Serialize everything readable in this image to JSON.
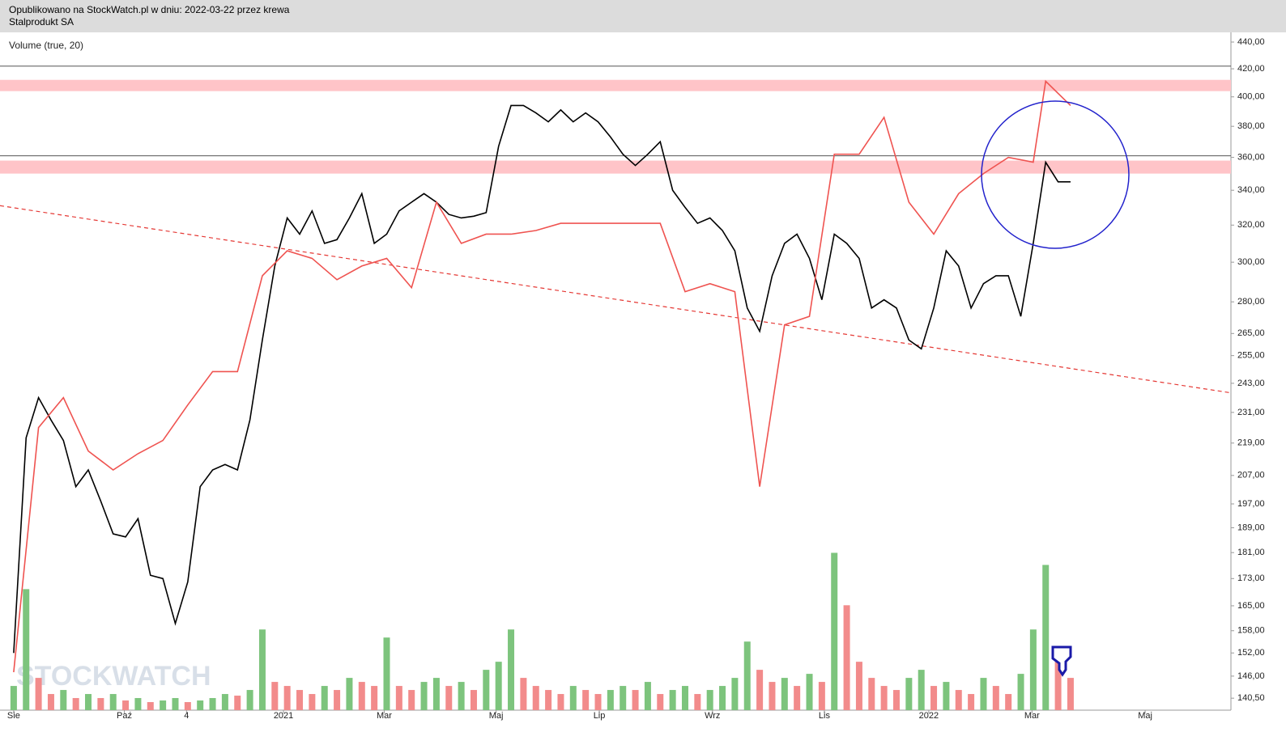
{
  "header": {
    "line1": "Opublikowano na StockWatch.pl w dniu: 2022-03-22 przez krewa",
    "line2": "Stalprodukt SA"
  },
  "chart_data": {
    "type": "line",
    "title": "Volume (true, 20)",
    "watermark": "STOCKWATCH",
    "log_scale": true,
    "xlim": [
      -1.1,
      97.9
    ],
    "xticks": [
      {
        "value": 0,
        "label": "Sie"
      },
      {
        "value": 8.9,
        "label": "Paź"
      },
      {
        "value": 13.9,
        "label": "4"
      },
      {
        "value": 21.7,
        "label": "2021"
      },
      {
        "value": 29.8,
        "label": "Mar"
      },
      {
        "value": 38.8,
        "label": "Maj"
      },
      {
        "value": 47.1,
        "label": "Lip"
      },
      {
        "value": 56.2,
        "label": "Wrz"
      },
      {
        "value": 65.2,
        "label": "Lis"
      },
      {
        "value": 73.6,
        "label": "2022"
      },
      {
        "value": 81.9,
        "label": "Mar"
      },
      {
        "value": 91.0,
        "label": "Maj"
      }
    ],
    "ylim": [
      137.6,
      447.5
    ],
    "yticks": [
      {
        "value": 440,
        "label": "440,00"
      },
      {
        "value": 420,
        "label": "420,00"
      },
      {
        "value": 400,
        "label": "400,00"
      },
      {
        "value": 380,
        "label": "380,00"
      },
      {
        "value": 360,
        "label": "360,00"
      },
      {
        "value": 340,
        "label": "340,00"
      },
      {
        "value": 320,
        "label": "320,00"
      },
      {
        "value": 300,
        "label": "300,00"
      },
      {
        "value": 280,
        "label": "280,00"
      },
      {
        "value": 265,
        "label": "265,00"
      },
      {
        "value": 255,
        "label": "255,00"
      },
      {
        "value": 243,
        "label": "243,00"
      },
      {
        "value": 231,
        "label": "231,00"
      },
      {
        "value": 219,
        "label": "219,00"
      },
      {
        "value": 207,
        "label": "207,00"
      },
      {
        "value": 197,
        "label": "197,00"
      },
      {
        "value": 189,
        "label": "189,00"
      },
      {
        "value": 181,
        "label": "181,00"
      },
      {
        "value": 173,
        "label": "173,00"
      },
      {
        "value": 165,
        "label": "165,00"
      },
      {
        "value": 158,
        "label": "158,00"
      },
      {
        "value": 152,
        "label": "152,00"
      },
      {
        "value": 146,
        "label": "146,00"
      },
      {
        "value": 140.5,
        "label": "140,50"
      }
    ],
    "y2lim": [
      0,
      840
    ],
    "levels": [
      422,
      361
    ],
    "level_color": "#555555",
    "zones": [
      [
        404,
        412
      ],
      [
        350,
        358
      ]
    ],
    "zone_color": "#ffc4c8",
    "trendline": {
      "color": "#e53935",
      "x": [
        -1.1,
        97.9
      ],
      "values": [
        331,
        239
      ]
    },
    "series": [
      {
        "color": "#000000",
        "x": [
          0,
          1,
          2,
          3,
          4,
          5,
          6,
          7,
          8,
          9,
          10,
          11,
          12,
          13,
          14,
          15,
          16,
          17,
          18,
          19,
          20,
          21,
          22,
          23,
          24,
          25,
          26,
          27,
          28,
          29,
          30,
          31,
          32,
          33,
          34,
          35,
          36,
          37,
          38,
          39,
          40,
          41,
          42,
          43,
          44,
          45,
          46,
          47,
          48,
          49,
          50,
          51,
          52,
          53,
          54,
          55,
          56,
          57,
          58,
          59,
          60,
          61,
          62,
          63,
          64,
          65,
          66,
          67,
          68,
          69,
          70,
          71,
          72,
          73,
          74,
          75,
          76,
          77,
          78,
          79,
          80,
          81,
          82,
          83,
          84,
          85
        ],
        "values": [
          152,
          221,
          237,
          228,
          220,
          203,
          209,
          198,
          187,
          186,
          192,
          174,
          173,
          160,
          172,
          203,
          209,
          211,
          209,
          228,
          262,
          298,
          324,
          315,
          328,
          310,
          312,
          324,
          338,
          310,
          315,
          328,
          333,
          338,
          333,
          326,
          324,
          325,
          327,
          367,
          394,
          394,
          389,
          383,
          391,
          383,
          389,
          383,
          373,
          362,
          355,
          362,
          370,
          340,
          330,
          321,
          324,
          317,
          306,
          277,
          266,
          293,
          310,
          315,
          302,
          281,
          315,
          310,
          302,
          277,
          281,
          277,
          262,
          258,
          277,
          306,
          298,
          277,
          289,
          293,
          293,
          273,
          310,
          357,
          345,
          345
        ]
      },
      {
        "color": "#ef5350",
        "x": [
          0,
          2,
          4,
          6,
          8,
          10,
          12,
          14,
          16,
          18,
          20,
          22,
          24,
          26,
          28,
          30,
          32,
          34,
          36,
          38,
          40,
          42,
          44,
          46,
          48,
          50,
          52,
          54,
          56,
          58,
          60,
          62,
          64,
          66,
          68,
          70,
          72,
          74,
          76,
          78,
          80,
          82,
          83,
          85
        ],
        "values": [
          147,
          225,
          237,
          216,
          209,
          215,
          220,
          234,
          248,
          248,
          293,
          306,
          302,
          291,
          298,
          302,
          287,
          333,
          310,
          315,
          315,
          317,
          321,
          321,
          321,
          321,
          321,
          285,
          289,
          285,
          203,
          269,
          273,
          362,
          362,
          386,
          333,
          315,
          338,
          350,
          360,
          357,
          411,
          394
        ]
      },
      {
        "type": "bar",
        "axis": "y2",
        "up_color": "#7dc47d",
        "down_color": "#f28b8b",
        "x": [
          0,
          1,
          2,
          3,
          4,
          5,
          6,
          7,
          8,
          9,
          10,
          11,
          12,
          13,
          14,
          15,
          16,
          17,
          18,
          19,
          20,
          21,
          22,
          23,
          24,
          25,
          26,
          27,
          28,
          29,
          30,
          31,
          32,
          33,
          34,
          35,
          36,
          37,
          38,
          39,
          40,
          41,
          42,
          43,
          44,
          45,
          46,
          47,
          48,
          49,
          50,
          51,
          52,
          53,
          54,
          55,
          56,
          57,
          58,
          59,
          60,
          61,
          62,
          63,
          64,
          65,
          66,
          67,
          68,
          69,
          70,
          71,
          72,
          73,
          74,
          75,
          76,
          77,
          78,
          79,
          80,
          81,
          82,
          83,
          84,
          85
        ],
        "values": [
          30,
          150,
          40,
          20,
          25,
          15,
          20,
          15,
          20,
          12,
          15,
          10,
          12,
          15,
          10,
          12,
          15,
          20,
          18,
          25,
          100,
          35,
          30,
          25,
          20,
          30,
          25,
          40,
          35,
          30,
          90,
          30,
          25,
          35,
          40,
          30,
          35,
          25,
          50,
          60,
          100,
          40,
          30,
          25,
          20,
          30,
          25,
          20,
          25,
          30,
          25,
          35,
          20,
          25,
          30,
          20,
          25,
          30,
          40,
          85,
          50,
          35,
          40,
          30,
          45,
          35,
          195,
          130,
          60,
          40,
          30,
          25,
          40,
          50,
          30,
          35,
          25,
          20,
          40,
          30,
          20,
          45,
          100,
          180,
          60,
          40
        ]
      }
    ]
  }
}
